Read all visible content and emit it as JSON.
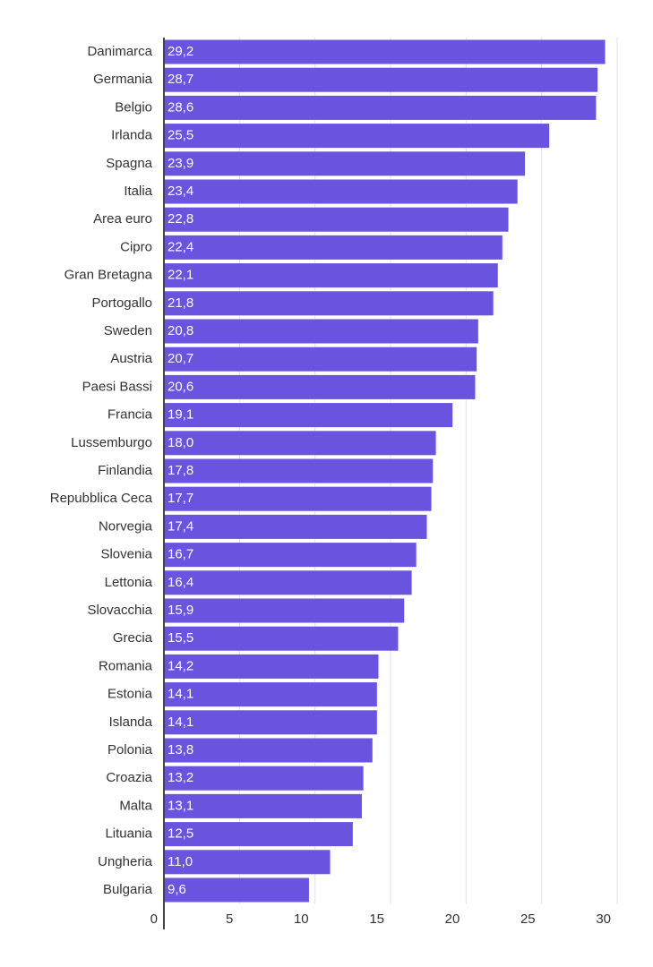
{
  "chart_data": {
    "type": "hbar",
    "categories": [
      "Danimarca",
      "Germania",
      "Belgio",
      "Irlanda",
      "Spagna",
      "Italia",
      "Area euro",
      "Cipro",
      "Gran Bretagna",
      "Portogallo",
      "Sweden",
      "Austria",
      "Paesi Bassi",
      "Francia",
      "Lussemburgo",
      "Finlandia",
      "Repubblica Ceca",
      "Norvegia",
      "Slovenia",
      "Lettonia",
      "Slovacchia",
      "Grecia",
      "Romania",
      "Estonia",
      "Islanda",
      "Polonia",
      "Croazia",
      "Malta",
      "Lituania",
      "Ungheria",
      "Bulgaria"
    ],
    "values": [
      29.2,
      28.7,
      28.6,
      25.5,
      23.9,
      23.4,
      22.8,
      22.4,
      22.1,
      21.8,
      20.8,
      20.7,
      20.6,
      19.1,
      18.0,
      17.8,
      17.7,
      17.4,
      16.7,
      16.4,
      15.9,
      15.5,
      14.2,
      14.1,
      14.1,
      13.8,
      13.2,
      13.1,
      12.5,
      11.0,
      9.6
    ],
    "value_labels": [
      "29,2",
      "28,7",
      "28,6",
      "25,5",
      "23,9",
      "23,4",
      "22,8",
      "22,4",
      "22,1",
      "21,8",
      "20,8",
      "20,7",
      "20,6",
      "19,1",
      "18,0",
      "17,8",
      "17,7",
      "17,4",
      "16,7",
      "16,4",
      "15,9",
      "15,5",
      "14,2",
      "14,1",
      "14,1",
      "13,8",
      "13,2",
      "13,1",
      "12,5",
      "11,0",
      "9,6"
    ],
    "color": "#6a53de",
    "xlim": [
      0,
      30
    ],
    "xticks": [
      0,
      5,
      10,
      15,
      20,
      25,
      30
    ],
    "grid": true
  }
}
